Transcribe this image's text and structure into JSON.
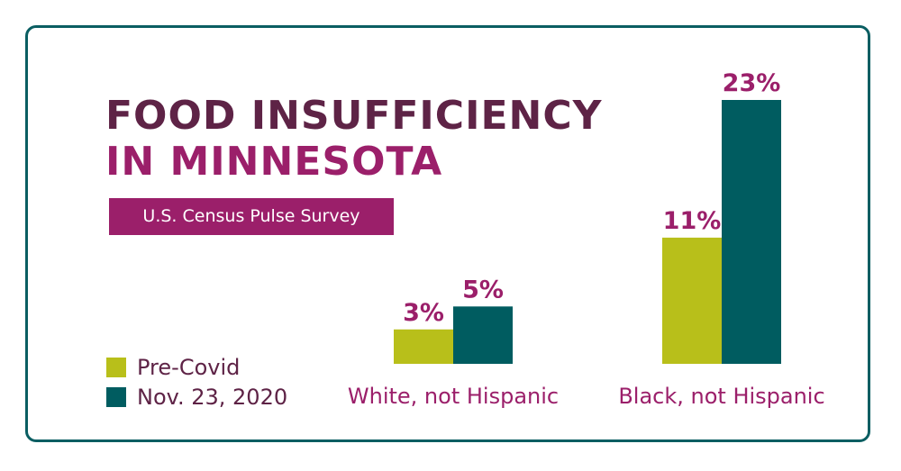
{
  "title_line1": "FOOD INSUFFICIENCY",
  "title_line2": "IN MINNESOTA",
  "source_badge": "U.S. Census Pulse Survey",
  "colors": {
    "frame": "#0a5e62",
    "title_dark": "#5e2346",
    "accent": "#9b1f6a",
    "pre_covid": "#b8bf1a",
    "nov_2020": "#005c60"
  },
  "legend": [
    {
      "label": "Pre-Covid",
      "color": "#b8bf1a"
    },
    {
      "label": "Nov. 23, 2020",
      "color": "#005c60"
    }
  ],
  "chart_data": {
    "type": "bar",
    "categories": [
      "White, not Hispanic",
      "Black, not Hispanic"
    ],
    "series": [
      {
        "name": "Pre-Covid",
        "values": [
          3,
          11
        ],
        "labels": [
          "3%",
          "11%"
        ]
      },
      {
        "name": "Nov. 23, 2020",
        "values": [
          5,
          23
        ],
        "labels": [
          "5%",
          "23%"
        ]
      }
    ],
    "ylim": [
      0,
      23
    ],
    "grid": false,
    "legend_position": "bottom-left"
  }
}
